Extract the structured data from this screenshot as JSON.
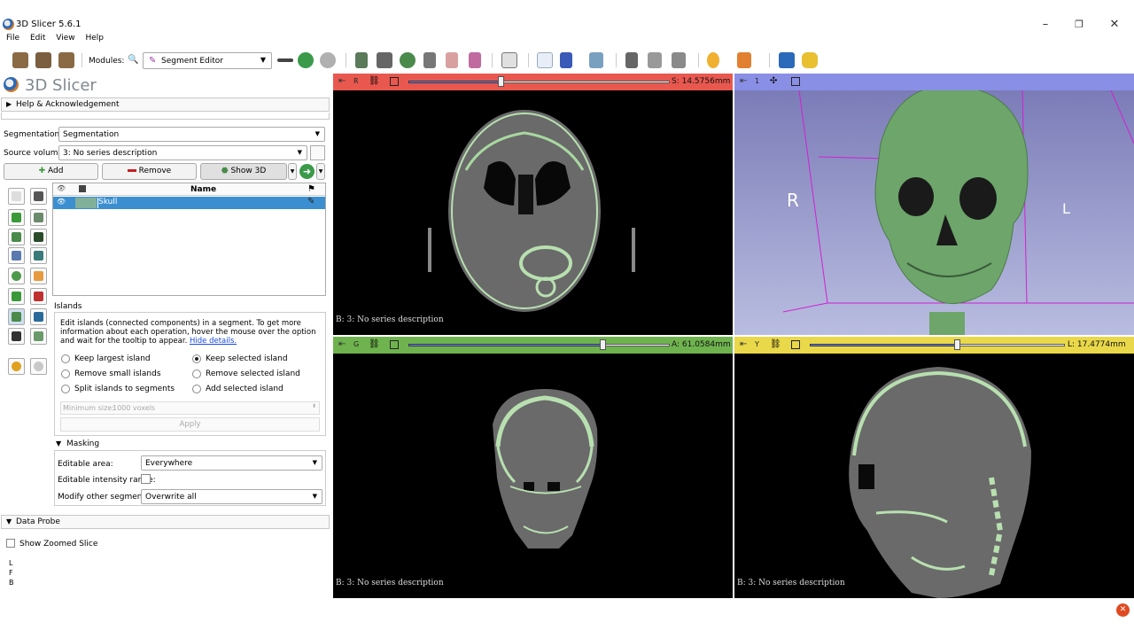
{
  "window": {
    "title": "3D Slicer 5.6.1"
  },
  "menu": [
    "File",
    "Edit",
    "View",
    "Help"
  ],
  "toolbar": {
    "modules_label": "Modules:",
    "module_selected": "Segment Editor"
  },
  "brand": "3D Slicer",
  "help_section": "Help & Acknowledgement",
  "segmentation": {
    "label": "Segmentation:",
    "value": "Segmentation",
    "source_label": "Source volume:",
    "source_value": "3: No series description",
    "add": "Add",
    "remove": "Remove",
    "show3d": "Show 3D"
  },
  "table": {
    "name_header": "Name",
    "rows": [
      {
        "name": "Skull",
        "color": "#80b09a"
      }
    ]
  },
  "islands": {
    "title": "Islands",
    "description": "Edit islands (connected components) in a segment. To get more information about each operation, hover the mouse over the option and wait for the tooltip to appear.",
    "hide_link": "Hide details.",
    "options": [
      {
        "label": "Keep largest island",
        "checked": false
      },
      {
        "label": "Keep selected island",
        "checked": true
      },
      {
        "label": "Remove small islands",
        "checked": false
      },
      {
        "label": "Remove selected island",
        "checked": false
      },
      {
        "label": "Split islands to segments",
        "checked": false
      },
      {
        "label": "Add selected island",
        "checked": false
      }
    ],
    "min_size_label": "Minimum size:",
    "min_size_value": "1000 voxels",
    "apply": "Apply"
  },
  "masking": {
    "title": "Masking",
    "editable_area_label": "Editable area:",
    "editable_area_value": "Everywhere",
    "intensity_label": "Editable intensity range:",
    "modify_label": "Modify other segments:",
    "modify_value": "Overwrite all"
  },
  "data_probe": {
    "title": "Data Probe",
    "zoomed": "Show Zoomed Slice",
    "lines": [
      "L",
      "F",
      "B"
    ]
  },
  "views": {
    "red": {
      "letter": "R",
      "value": "S: 14.5756mm",
      "annotation": "B: 3: No series description",
      "color": "#e8584f",
      "slider": 0.36
    },
    "green": {
      "letter": "G",
      "value": "A: 61.0584mm",
      "annotation": "B: 3: No series description",
      "color": "#6fb34f",
      "slider": 0.77
    },
    "yellow": {
      "letter": "Y",
      "value": "L: 17.4774mm",
      "annotation": "B: 3: No series description",
      "color": "#e9d84a",
      "slider": 0.62
    },
    "threed": {
      "letter": "1",
      "color": "#8a8fe6",
      "left_label": "R",
      "right_label": "L"
    }
  }
}
